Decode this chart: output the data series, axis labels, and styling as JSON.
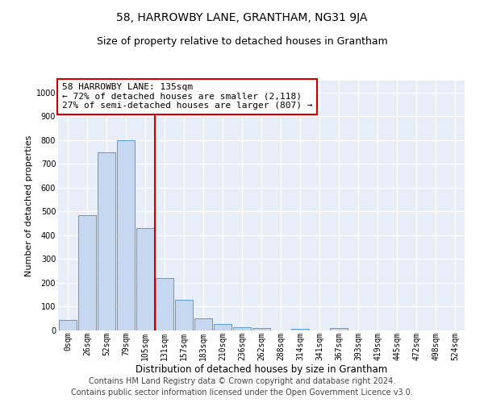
{
  "title": "58, HARROWBY LANE, GRANTHAM, NG31 9JA",
  "subtitle": "Size of property relative to detached houses in Grantham",
  "xlabel": "Distribution of detached houses by size in Grantham",
  "ylabel": "Number of detached properties",
  "bar_labels": [
    "0sqm",
    "26sqm",
    "52sqm",
    "79sqm",
    "105sqm",
    "131sqm",
    "157sqm",
    "183sqm",
    "210sqm",
    "236sqm",
    "262sqm",
    "288sqm",
    "314sqm",
    "341sqm",
    "367sqm",
    "393sqm",
    "419sqm",
    "445sqm",
    "472sqm",
    "498sqm",
    "524sqm"
  ],
  "bar_values": [
    45,
    485,
    750,
    800,
    430,
    220,
    128,
    50,
    28,
    15,
    10,
    0,
    8,
    0,
    10,
    0,
    0,
    0,
    0,
    0,
    0
  ],
  "bar_color": "#c5d8f0",
  "bar_edge_color": "#5b9bd5",
  "vline_color": "#cc0000",
  "ylim": [
    0,
    1050
  ],
  "yticks": [
    0,
    100,
    200,
    300,
    400,
    500,
    600,
    700,
    800,
    900,
    1000
  ],
  "annotation_text": "58 HARROWBY LANE: 135sqm\n← 72% of detached houses are smaller (2,118)\n27% of semi-detached houses are larger (807) →",
  "annotation_box_color": "#ffffff",
  "annotation_box_edge": "#cc0000",
  "footer_line1": "Contains HM Land Registry data © Crown copyright and database right 2024.",
  "footer_line2": "Contains public sector information licensed under the Open Government Licence v3.0.",
  "background_color": "#e8eef8",
  "grid_color": "#ffffff",
  "title_fontsize": 10,
  "subtitle_fontsize": 9,
  "xlabel_fontsize": 8.5,
  "ylabel_fontsize": 8,
  "tick_fontsize": 7,
  "annotation_fontsize": 8,
  "footer_fontsize": 7
}
